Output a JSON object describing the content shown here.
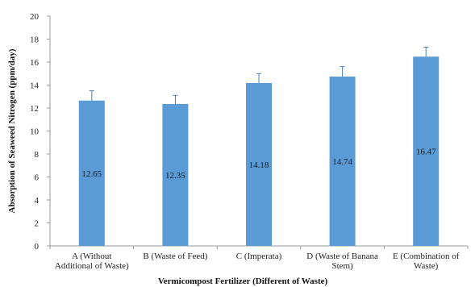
{
  "chart_data": {
    "type": "bar",
    "title": "",
    "xlabel": "Vermicompost  Fertilizer  (Different of Waste)",
    "ylabel": "Absorption  of  Seaweed Nitrogen (ppm/day)",
    "categories": [
      [
        "A (Without",
        "Additional of Waste)"
      ],
      [
        "B (Waste of Feed)"
      ],
      [
        "C (Imperata)"
      ],
      [
        "D (Waste of Banana",
        "Stem)"
      ],
      [
        "E (Combination of",
        "Waste)"
      ]
    ],
    "values": [
      12.65,
      12.35,
      14.18,
      14.74,
      16.47
    ],
    "data_labels": [
      "12.65",
      "12.35",
      "14.18",
      "14.74",
      "16.47"
    ],
    "error_upper": [
      13.5,
      13.1,
      15.0,
      15.6,
      17.3
    ],
    "ylim": [
      0,
      20
    ],
    "yticks": [
      "0",
      "2",
      "4",
      "6",
      "8",
      "10",
      "12",
      "14",
      "16",
      "18",
      "20"
    ],
    "grid": false,
    "legend": "none",
    "bar_color": "#5b9bd5",
    "axis_color": "#9a9a9a"
  }
}
